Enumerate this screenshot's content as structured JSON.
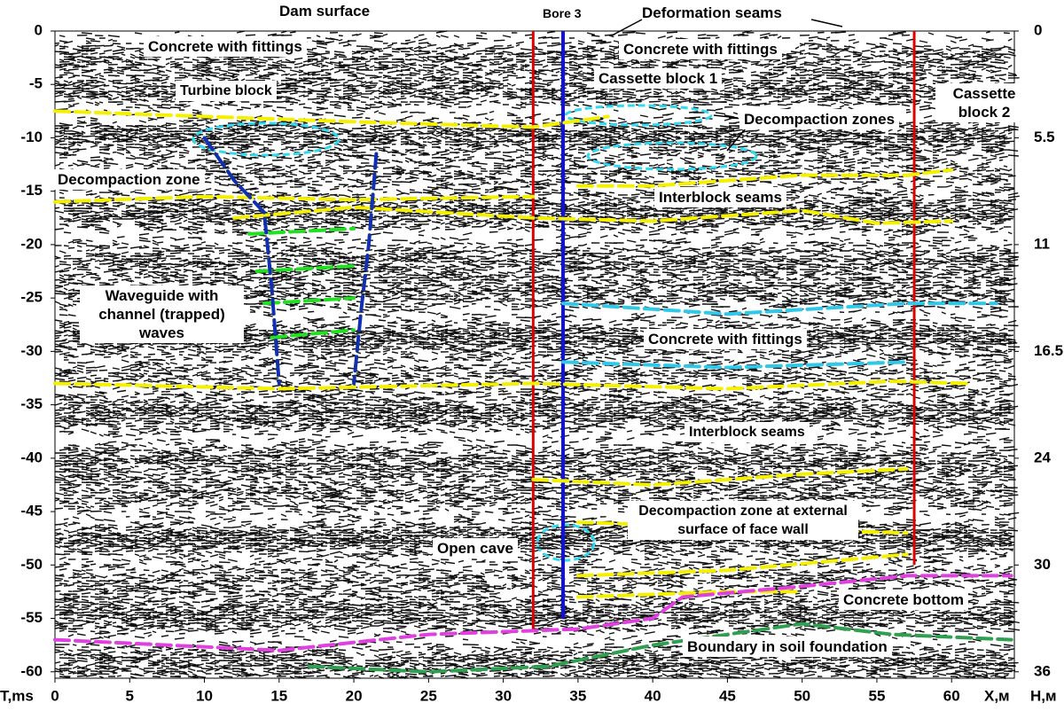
{
  "chart_data": {
    "type": "seismic-section",
    "xlabel": "X,м",
    "ylabel": "T,ms",
    "y2label": "H,м",
    "xlim": [
      0,
      64.2
    ],
    "ylim": [
      -60.6,
      0
    ],
    "xticks": [
      0,
      5,
      10,
      15,
      20,
      25,
      30,
      35,
      40,
      45,
      50,
      55,
      60
    ],
    "yticks": [
      0,
      -5,
      -10,
      -15,
      -20,
      -25,
      -30,
      -35,
      -40,
      -45,
      -50,
      -55,
      -60
    ],
    "h_axis": [
      {
        "t": 0,
        "h": 0
      },
      {
        "t": -10,
        "h": 5.5
      },
      {
        "t": -20,
        "h": 11
      },
      {
        "t": -30,
        "h": 16.5
      },
      {
        "t": -40,
        "h": 24
      },
      {
        "t": -50,
        "h": 30
      },
      {
        "t": -60,
        "h": 36
      }
    ],
    "verticals": [
      {
        "color": "#e00000",
        "x": 32,
        "y": [
          0,
          -56
        ]
      },
      {
        "color": "#1010e0",
        "x": 34,
        "y": [
          0,
          -55
        ]
      },
      {
        "color": "#e00000",
        "x": 57.5,
        "y": [
          0,
          -50
        ]
      }
    ],
    "series": [
      {
        "color": "#f5f000",
        "x": [
          0,
          10,
          20,
          32,
          37
        ],
        "y": [
          -7.5,
          -8,
          -8.5,
          -9,
          -8
        ]
      },
      {
        "color": "#f5f000",
        "x": [
          0,
          10,
          20,
          32
        ],
        "y": [
          -16,
          -15.5,
          -15.8,
          -15.5
        ]
      },
      {
        "color": "#f5f000",
        "x": [
          35,
          40,
          50,
          57,
          60
        ],
        "y": [
          -14.5,
          -14.5,
          -13.5,
          -13.5,
          -13
        ]
      },
      {
        "color": "#f5f000",
        "x": [
          12,
          20,
          32,
          40,
          50,
          55,
          60
        ],
        "y": [
          -17.5,
          -16.5,
          -17.5,
          -17.8,
          -16.8,
          -18,
          -17.8
        ]
      },
      {
        "color": "#f5f000",
        "x": [
          0,
          15,
          32,
          45,
          56,
          61
        ],
        "y": [
          -33,
          -33.5,
          -33,
          -33.5,
          -32.8,
          -33
        ]
      },
      {
        "color": "#f5f000",
        "x": [
          32,
          40,
          50,
          57
        ],
        "y": [
          -42,
          -42.5,
          -41.5,
          -41
        ]
      },
      {
        "color": "#f5f000",
        "x": [
          35,
          45,
          57
        ],
        "y": [
          -46,
          -46.5,
          -47
        ]
      },
      {
        "color": "#f5f000",
        "x": [
          35,
          45,
          57
        ],
        "y": [
          -51,
          -50.5,
          -49
        ]
      },
      {
        "color": "#f5f000",
        "x": [
          35,
          45,
          50
        ],
        "y": [
          -53,
          -52.5,
          -52.5
        ]
      },
      {
        "color": "#e040e0",
        "x": [
          0,
          15,
          25,
          35,
          40,
          42,
          50,
          57,
          64
        ],
        "y": [
          -57,
          -58,
          -56.5,
          -56,
          -55,
          -53,
          -52,
          -51,
          -51
        ]
      },
      {
        "color": "#2ea050",
        "x": [
          17,
          25,
          33,
          40,
          50,
          56,
          64
        ],
        "y": [
          -59.5,
          -60,
          -59.5,
          -57.5,
          -55.5,
          -56.5,
          -57
        ]
      },
      {
        "color": "#30c8e8",
        "x": [
          34,
          45,
          57,
          63
        ],
        "y": [
          -25.5,
          -26.5,
          -25.5,
          -25.5
        ]
      },
      {
        "color": "#30c8e8",
        "x": [
          34,
          45,
          57
        ],
        "y": [
          -31,
          -31.5,
          -31
        ]
      },
      {
        "color": "#20e020",
        "x": [
          13,
          20
        ],
        "y": [
          -19,
          -18.5
        ]
      },
      {
        "color": "#20e020",
        "x": [
          13.5,
          20
        ],
        "y": [
          -22.5,
          -22
        ]
      },
      {
        "color": "#20e020",
        "x": [
          14,
          20
        ],
        "y": [
          -25.5,
          -25
        ]
      },
      {
        "color": "#20e020",
        "x": [
          14.5,
          20
        ],
        "y": [
          -28.7,
          -28
        ]
      },
      {
        "color": "#1030b0",
        "x": [
          10,
          12,
          14,
          14.5,
          15
        ],
        "y": [
          -10,
          -14,
          -17,
          -24,
          -33
        ]
      },
      {
        "color": "#1030b0",
        "x": [
          21.5,
          21,
          20.5,
          20
        ],
        "y": [
          -11.5,
          -20,
          -26,
          -33
        ]
      }
    ],
    "annotations": [
      "Dam surface",
      "Bore 3",
      "Deformation seams",
      "Concrete with fittings",
      "Concrete with fittings",
      "Turbine block",
      "Cassette block 1",
      "Cassette block 2",
      "Decompaction zones",
      "Decompaction zone",
      "Interblock seams",
      "Waveguide with channel (trapped) waves",
      "Concrete with fittings",
      "Interblock seams",
      "Decompaction zone at external surface of face wall",
      "Open cave",
      "Concrete bottom",
      "Boundary in soil foundation"
    ]
  }
}
